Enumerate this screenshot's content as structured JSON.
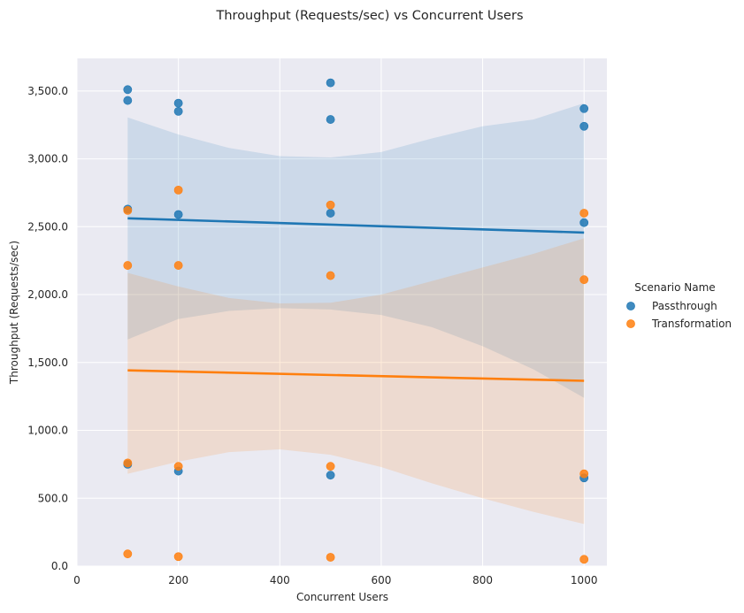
{
  "chart_data": {
    "type": "scatter",
    "title": "Throughput (Requests/sec) vs Concurrent Users",
    "xlabel": "Concurrent Users",
    "ylabel": "Throughput (Requests/sec)",
    "xlim": [
      0,
      1045
    ],
    "ylim": [
      0,
      3740
    ],
    "xticks": [
      0,
      200,
      400,
      600,
      800,
      1000
    ],
    "xtick_labels": [
      "0",
      "200",
      "400",
      "600",
      "800",
      "1000"
    ],
    "yticks": [
      0,
      500,
      1000,
      1500,
      2000,
      2500,
      3000,
      3500
    ],
    "ytick_labels": [
      "0.0",
      "500.0",
      "1,000.0",
      "1,500.0",
      "2,000.0",
      "2,500.0",
      "3,000.0",
      "3,500.0"
    ],
    "grid": true,
    "legend_title": "Scenario Name",
    "legend_position": "right",
    "series": [
      {
        "name": "Passthrough",
        "color": "#1f77b4",
        "points": [
          [
            100,
            3510
          ],
          [
            100,
            3430
          ],
          [
            100,
            2630
          ],
          [
            100,
            750
          ],
          [
            200,
            3410
          ],
          [
            200,
            3350
          ],
          [
            200,
            2590
          ],
          [
            200,
            700
          ],
          [
            500,
            3560
          ],
          [
            500,
            3290
          ],
          [
            500,
            2600
          ],
          [
            500,
            670
          ],
          [
            1000,
            3370
          ],
          [
            1000,
            3240
          ],
          [
            1000,
            2530
          ],
          [
            1000,
            650
          ]
        ],
        "fit_line": [
          [
            100,
            2562
          ],
          [
            1000,
            2457
          ]
        ],
        "ci_band": [
          [
            100,
            1670,
            3305
          ],
          [
            200,
            1820,
            3180
          ],
          [
            300,
            1880,
            3080
          ],
          [
            400,
            1900,
            3020
          ],
          [
            500,
            1890,
            3010
          ],
          [
            600,
            1850,
            3050
          ],
          [
            700,
            1760,
            3150
          ],
          [
            800,
            1620,
            3240
          ],
          [
            900,
            1450,
            3290
          ],
          [
            1000,
            1240,
            3410
          ]
        ]
      },
      {
        "name": "Transformation",
        "color": "#ff7f0e",
        "points": [
          [
            100,
            2620
          ],
          [
            100,
            2215
          ],
          [
            100,
            760
          ],
          [
            100,
            90
          ],
          [
            200,
            2770
          ],
          [
            200,
            2215
          ],
          [
            200,
            735
          ],
          [
            200,
            70
          ],
          [
            500,
            2660
          ],
          [
            500,
            2140
          ],
          [
            500,
            735
          ],
          [
            500,
            65
          ],
          [
            1000,
            2600
          ],
          [
            1000,
            2110
          ],
          [
            1000,
            680
          ],
          [
            1000,
            50
          ]
        ],
        "fit_line": [
          [
            100,
            1442
          ],
          [
            1000,
            1365
          ]
        ],
        "ci_band": [
          [
            100,
            680,
            2160
          ],
          [
            200,
            770,
            2060
          ],
          [
            300,
            840,
            1975
          ],
          [
            400,
            860,
            1935
          ],
          [
            500,
            820,
            1940
          ],
          [
            600,
            730,
            2000
          ],
          [
            700,
            610,
            2100
          ],
          [
            800,
            500,
            2200
          ],
          [
            900,
            400,
            2300
          ],
          [
            1000,
            310,
            2415
          ]
        ]
      }
    ]
  }
}
